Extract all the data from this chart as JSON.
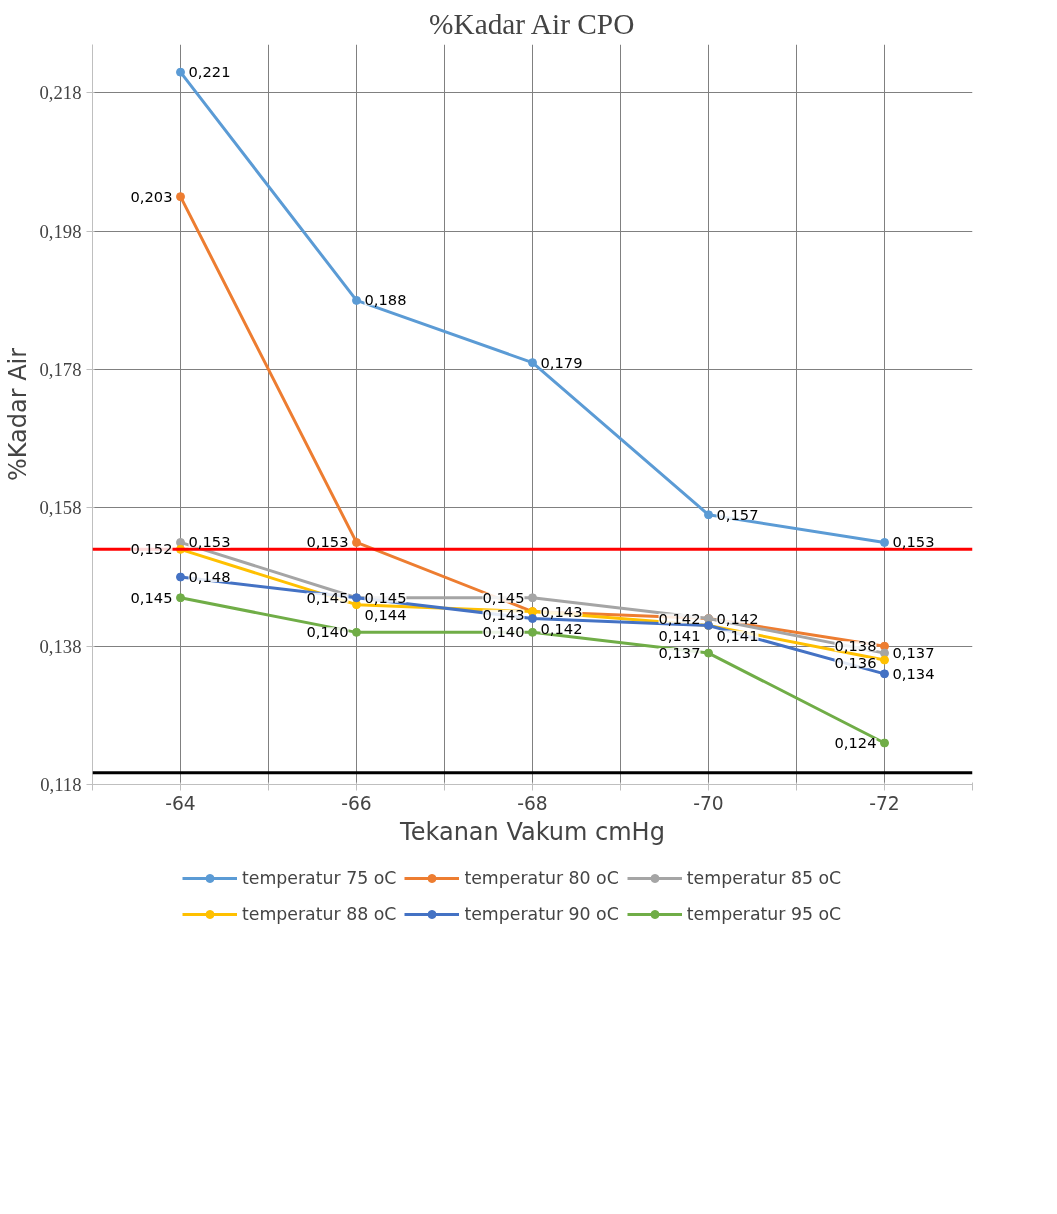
{
  "chart_data": {
    "type": "line",
    "title": "%Kadar Air CPO",
    "xlabel": "Tekanan Vakum cmHg",
    "ylabel": "%Kadar Air",
    "x": [
      -64,
      -66,
      -68,
      -70,
      -72
    ],
    "xlim": [
      -63,
      -73
    ],
    "xticks": [
      {
        "value": -63,
        "label": null
      },
      -64,
      {
        "value": -65,
        "label": null
      },
      -66,
      {
        "value": -67,
        "label": null
      },
      -68,
      {
        "value": -69,
        "label": null
      },
      -70,
      {
        "value": -71,
        "label": null
      },
      -72,
      {
        "value": -73,
        "label": null
      }
    ],
    "ylim": [
      0.118,
      0.225
    ],
    "yticks": [
      {
        "value": 0.118,
        "label": "0,118"
      },
      {
        "value": 0.138,
        "label": "0,138"
      },
      {
        "value": 0.158,
        "label": "0,158"
      },
      {
        "value": 0.178,
        "label": "0,178"
      },
      {
        "value": 0.198,
        "label": "0,198"
      },
      {
        "value": 0.218,
        "label": "0,218"
      }
    ],
    "series": [
      {
        "name": "temperatur 75 oC",
        "color": "#5b9bd5",
        "values": [
          0.221,
          0.188,
          0.179,
          0.157,
          0.153
        ],
        "value_labels": [
          "0,221",
          "0,188",
          "0,179",
          "0,157",
          "0,153"
        ]
      },
      {
        "name": "temperatur 80 oC",
        "color": "#ed7d31",
        "values": [
          0.203,
          0.153,
          0.143,
          0.142,
          0.138
        ],
        "value_labels": [
          "0,203",
          "0,153",
          "0,143",
          "0,142",
          "0,138"
        ]
      },
      {
        "name": "temperatur 85 oC",
        "color": "#a5a5a5",
        "values": [
          0.153,
          0.145,
          0.145,
          0.142,
          0.137
        ],
        "value_labels": [
          "0,153",
          "0,145",
          "0,145",
          "0,142",
          "0,137"
        ]
      },
      {
        "name": "temperatur 88 oC",
        "color": "#ffc000",
        "values": [
          0.152,
          0.144,
          0.143,
          0.141,
          0.136
        ],
        "value_labels": [
          "0,152",
          "0,144",
          "0,143",
          "0,141",
          "0,136"
        ]
      },
      {
        "name": "temperatur 90 oC",
        "color": "#4472c4",
        "values": [
          0.148,
          0.145,
          0.142,
          0.141,
          0.134
        ],
        "value_labels": [
          "0,148",
          "0,145",
          "0,142",
          "0,141",
          "0,134"
        ]
      },
      {
        "name": "temperatur 95 oC",
        "color": "#70ad47",
        "values": [
          0.145,
          0.14,
          0.14,
          0.137,
          0.124
        ],
        "value_labels": [
          "0,145",
          "0,140",
          "0,140",
          "0,137",
          "0,124"
        ]
      }
    ],
    "ref_lines": [
      {
        "axis": "y",
        "value": 0.152,
        "color": "#ff0000",
        "line_style": "solid"
      },
      {
        "axis": "y",
        "value": 0.1197,
        "color": "#000000",
        "line_style": "solid"
      }
    ],
    "data_labels": true,
    "grid": true,
    "legend": "bottom",
    "marker": "circle",
    "line_style": "solid"
  }
}
